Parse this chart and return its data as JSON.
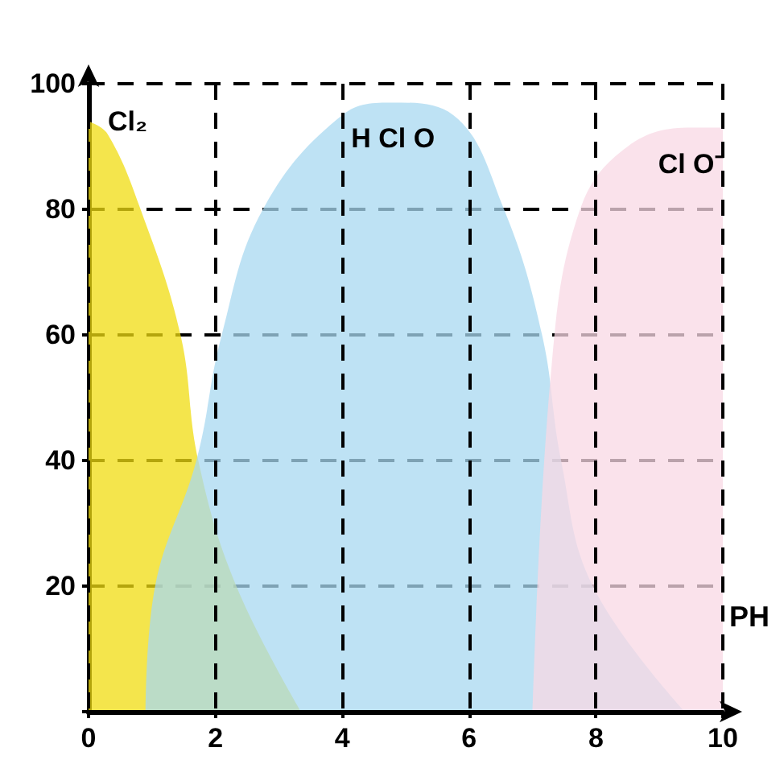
{
  "chart_data": {
    "type": "area",
    "xlabel": "PH",
    "xlim": [
      0,
      10
    ],
    "xticks": [
      0,
      2,
      4,
      6,
      8,
      10
    ],
    "ylim": [
      0,
      100
    ],
    "yticks": [
      {
        "value": 0,
        "label": null
      },
      20,
      40,
      60,
      80,
      100
    ],
    "grid": true,
    "series": [
      {
        "name": "Cl₂",
        "color": "#f0dc10",
        "x": [
          0,
          0.3,
          0.82,
          1.45,
          1.73,
          2.33,
          3.35
        ],
        "values": [
          94,
          92,
          80,
          60,
          40,
          20,
          0
        ]
      },
      {
        "name": "H Cl O",
        "color": "#a8d8f0",
        "x": [
          0.9,
          1.05,
          1.7,
          2.1,
          2.75,
          4,
          4.8,
          5.75,
          6.55,
          7.15,
          7.45,
          7.95,
          9.4
        ],
        "values": [
          0,
          20,
          40,
          60,
          80,
          95,
          97,
          95,
          80,
          60,
          40,
          20,
          0
        ]
      },
      {
        "name": "Cl O⁻",
        "color": "#f8d8e4",
        "x": [
          7.0,
          7.3,
          7.75,
          8.5,
          9.5,
          10
        ],
        "values": [
          0,
          55,
          80,
          90,
          93,
          93
        ]
      }
    ]
  }
}
